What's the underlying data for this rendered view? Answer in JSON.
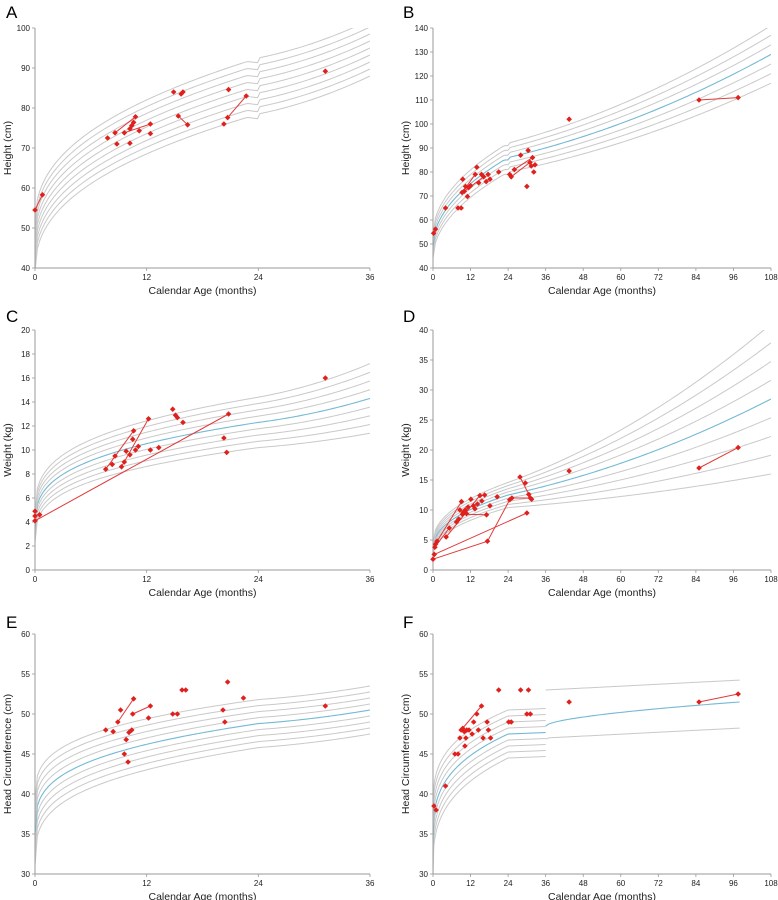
{
  "chart_data": [
    {
      "panel": "A",
      "type": "scatter",
      "xlabel": "Calendar Age (months)",
      "ylabel": "Height (cm)",
      "xlim": [
        0,
        36
      ],
      "ylim": [
        40,
        100
      ],
      "xticks": [
        0,
        12,
        24,
        36
      ],
      "yticks": [
        40,
        50,
        60,
        70,
        80,
        90,
        100
      ],
      "median_highlight": false,
      "reference": {
        "start": 45,
        "start_spread": 12,
        "at24": 85.5,
        "at24_spread": 14,
        "end": 95,
        "end_spread": 14,
        "k": 0.42,
        "lines": 9,
        "notch": 24,
        "notch_depth": 1.2
      },
      "points": [
        [
          0,
          54.5
        ],
        [
          0.8,
          58.3
        ],
        [
          7.8,
          72.5
        ],
        [
          8.6,
          73.8
        ],
        [
          8.8,
          71
        ],
        [
          9.6,
          73.8
        ],
        [
          10.2,
          71.2
        ],
        [
          10.2,
          74.8
        ],
        [
          10.4,
          75.6
        ],
        [
          10.6,
          76.4
        ],
        [
          10.8,
          77.8
        ],
        [
          11.2,
          74.3
        ],
        [
          12.4,
          73.6
        ],
        [
          12.4,
          76
        ],
        [
          14.9,
          84
        ],
        [
          15.4,
          78
        ],
        [
          15.7,
          83.5
        ],
        [
          15.9,
          84
        ],
        [
          16.4,
          75.8
        ],
        [
          20.3,
          76
        ],
        [
          20.7,
          77.6
        ],
        [
          20.8,
          84.6
        ],
        [
          22.7,
          83
        ],
        [
          31.2,
          89.2
        ]
      ],
      "connections": [
        [
          [
            0,
            54.5
          ],
          [
            0.8,
            58.3
          ]
        ],
        [
          [
            8.6,
            73.8
          ],
          [
            10.8,
            77.8
          ]
        ],
        [
          [
            9.6,
            73.8
          ],
          [
            12.4,
            76
          ]
        ],
        [
          [
            15.4,
            78
          ],
          [
            16.4,
            75.8
          ]
        ],
        [
          [
            20.7,
            77.6
          ],
          [
            22.7,
            83
          ]
        ]
      ]
    },
    {
      "panel": "B",
      "type": "scatter",
      "xlabel": "Calendar Age (months)",
      "ylabel": "Height (cm)",
      "xlim": [
        0,
        108
      ],
      "ylim": [
        40,
        140
      ],
      "xticks": [
        0,
        12,
        24,
        36,
        48,
        60,
        72,
        84,
        96,
        108
      ],
      "yticks": [
        40,
        50,
        60,
        70,
        80,
        90,
        100,
        110,
        120,
        130,
        140
      ],
      "median_highlight": true,
      "reference": {
        "start": 49,
        "start_spread": 10,
        "at24": 86,
        "at24_spread": 12,
        "end": 129,
        "end_spread": 24,
        "k": 0.5,
        "lines": 7,
        "notch": 24,
        "notch_depth": 1
      },
      "points": [
        [
          0.2,
          54.5
        ],
        [
          0.8,
          56.2
        ],
        [
          4,
          65
        ],
        [
          8,
          65
        ],
        [
          9,
          65
        ],
        [
          9.3,
          71.5
        ],
        [
          9.5,
          77
        ],
        [
          10,
          72
        ],
        [
          10.4,
          74
        ],
        [
          11,
          69.8
        ],
        [
          11.4,
          73.5
        ],
        [
          12,
          74.3
        ],
        [
          13.5,
          79
        ],
        [
          14,
          82
        ],
        [
          14.6,
          75.5
        ],
        [
          15.5,
          79
        ],
        [
          16.2,
          78
        ],
        [
          17,
          76
        ],
        [
          17.6,
          79
        ],
        [
          18.2,
          77
        ],
        [
          21,
          80
        ],
        [
          24.5,
          79
        ],
        [
          25,
          78
        ],
        [
          26,
          81
        ],
        [
          28,
          87
        ],
        [
          30,
          74
        ],
        [
          30.4,
          89
        ],
        [
          31,
          84
        ],
        [
          31.4,
          82.5
        ],
        [
          31.8,
          86
        ],
        [
          32.2,
          80
        ],
        [
          32.6,
          83
        ],
        [
          43.5,
          102
        ],
        [
          85,
          110
        ],
        [
          97.5,
          111
        ]
      ],
      "connections": [
        [
          [
            0.2,
            54.5
          ],
          [
            0.8,
            56.2
          ]
        ],
        [
          [
            9.3,
            71.5
          ],
          [
            13.5,
            79
          ]
        ],
        [
          [
            10,
            72
          ],
          [
            16.2,
            78
          ]
        ],
        [
          [
            25,
            78
          ],
          [
            31,
            84
          ]
        ],
        [
          [
            26,
            81
          ],
          [
            31.8,
            86
          ]
        ],
        [
          [
            85,
            110
          ],
          [
            97.5,
            111
          ]
        ]
      ]
    },
    {
      "panel": "C",
      "type": "scatter",
      "xlabel": "Calendar Age (months)",
      "ylabel": "Weight (kg)",
      "xlim": [
        0,
        36
      ],
      "ylim": [
        0,
        20
      ],
      "xticks": [
        0,
        12,
        24,
        36
      ],
      "yticks": [
        0,
        2,
        4,
        6,
        8,
        10,
        12,
        14,
        16,
        18,
        20
      ],
      "median_highlight": true,
      "reference": {
        "start": 3.4,
        "start_spread": 2.2,
        "at24": 12.3,
        "at24_spread": 4.2,
        "end": 14.3,
        "end_spread": 5.8,
        "k": 0.32,
        "lines": 9
      },
      "points": [
        [
          0,
          4.1
        ],
        [
          0,
          4.5
        ],
        [
          0,
          4.9
        ],
        [
          0.5,
          4.6
        ],
        [
          7.6,
          8.4
        ],
        [
          8.3,
          8.8
        ],
        [
          8.6,
          9.5
        ],
        [
          9.3,
          8.6
        ],
        [
          9.6,
          9
        ],
        [
          9.8,
          9.9
        ],
        [
          10.2,
          9.6
        ],
        [
          10.5,
          10.9
        ],
        [
          10.6,
          11.6
        ],
        [
          10.8,
          10
        ],
        [
          11.1,
          10.3
        ],
        [
          12.2,
          12.6
        ],
        [
          12.4,
          10
        ],
        [
          13.3,
          10.2
        ],
        [
          14.8,
          13.4
        ],
        [
          15.1,
          12.9
        ],
        [
          15.3,
          12.7
        ],
        [
          15.9,
          12.3
        ],
        [
          20.3,
          11
        ],
        [
          20.6,
          9.8
        ],
        [
          20.8,
          13
        ],
        [
          31.2,
          16
        ]
      ],
      "connections": [
        [
          [
            0,
            4.1
          ],
          [
            20.8,
            13
          ]
        ],
        [
          [
            7.6,
            8.4
          ],
          [
            10.6,
            11.6
          ]
        ],
        [
          [
            9.3,
            8.6
          ],
          [
            12.2,
            12.6
          ]
        ]
      ]
    },
    {
      "panel": "D",
      "type": "scatter",
      "xlabel": "Calendar Age (months)",
      "ylabel": "Weight (kg)",
      "xlim": [
        0,
        108
      ],
      "ylim": [
        0,
        40
      ],
      "xticks": [
        0,
        12,
        24,
        36,
        48,
        60,
        72,
        84,
        96,
        108
      ],
      "yticks": [
        0,
        5,
        10,
        15,
        20,
        25,
        30,
        35,
        40
      ],
      "median_highlight": true,
      "reference": {
        "start": 3.5,
        "start_spread": 2,
        "at24": 12.5,
        "at24_spread": 4.2,
        "end": 28.5,
        "end_spread": 25,
        "k": 0.45,
        "lines": 9
      },
      "points": [
        [
          0,
          1.8
        ],
        [
          0.4,
          2.6
        ],
        [
          0.6,
          3.8
        ],
        [
          0.8,
          4.3
        ],
        [
          1.3,
          4.8
        ],
        [
          4.2,
          5.5
        ],
        [
          5.2,
          7
        ],
        [
          7.5,
          8
        ],
        [
          8.2,
          8.5
        ],
        [
          8.6,
          10
        ],
        [
          9.1,
          11.4
        ],
        [
          9.4,
          9.3
        ],
        [
          9.7,
          9.6
        ],
        [
          10.3,
          10
        ],
        [
          10.7,
          9.4
        ],
        [
          11.2,
          10.5
        ],
        [
          12.1,
          11.8
        ],
        [
          12.9,
          10.7
        ],
        [
          13.4,
          10.2
        ],
        [
          14.2,
          11
        ],
        [
          15,
          12.4
        ],
        [
          15.6,
          11.5
        ],
        [
          16.5,
          12.5
        ],
        [
          17.1,
          9.2
        ],
        [
          17.4,
          4.8
        ],
        [
          18.2,
          10.7
        ],
        [
          20.5,
          12.2
        ],
        [
          24.5,
          11.7
        ],
        [
          25.2,
          12
        ],
        [
          27.8,
          15.5
        ],
        [
          29.5,
          14.5
        ],
        [
          30,
          9.5
        ],
        [
          30.6,
          12.6
        ],
        [
          31.1,
          12
        ],
        [
          31.5,
          11.8
        ],
        [
          43.5,
          16.5
        ],
        [
          85,
          17
        ],
        [
          97.5,
          20.4
        ]
      ],
      "connections": [
        [
          [
            0,
            1.8
          ],
          [
            17.4,
            4.8
          ],
          [
            24.5,
            11.7
          ]
        ],
        [
          [
            0.4,
            2.6
          ],
          [
            30,
            9.5
          ]
        ],
        [
          [
            0.6,
            3.8
          ],
          [
            5.2,
            7
          ]
        ],
        [
          [
            1.3,
            4.8
          ],
          [
            9.1,
            11.4
          ]
        ],
        [
          [
            4.2,
            5.5
          ],
          [
            15,
            12.4
          ]
        ],
        [
          [
            9.4,
            9.3
          ],
          [
            17.1,
            9.2
          ]
        ],
        [
          [
            25.2,
            12
          ],
          [
            31.1,
            12
          ]
        ],
        [
          [
            27.8,
            15.5
          ],
          [
            30.6,
            12.6
          ]
        ],
        [
          [
            85,
            17
          ],
          [
            97.5,
            20.4
          ]
        ]
      ]
    },
    {
      "panel": "E",
      "type": "scatter",
      "xlabel": "Calendar Age (months)",
      "ylabel": "Head Circumference (cm)",
      "xlim": [
        0,
        36
      ],
      "ylim": [
        30,
        60
      ],
      "xticks": [
        0,
        12,
        24,
        36
      ],
      "yticks": [
        30,
        35,
        40,
        45,
        50,
        55,
        60
      ],
      "median_highlight": true,
      "reference": {
        "start": 35,
        "start_spread": 8,
        "at24": 48.8,
        "at24_spread": 6,
        "end": 50.5,
        "end_spread": 6,
        "k": 0.3,
        "lines": 9
      },
      "points": [
        [
          7.6,
          48
        ],
        [
          8.4,
          47.8
        ],
        [
          8.9,
          49
        ],
        [
          9.2,
          50.5
        ],
        [
          9.6,
          45
        ],
        [
          9.8,
          46.8
        ],
        [
          10,
          44
        ],
        [
          10.1,
          47.7
        ],
        [
          10.4,
          48
        ],
        [
          10.5,
          50
        ],
        [
          10.6,
          51.9
        ],
        [
          12.2,
          49.5
        ],
        [
          12.4,
          51
        ],
        [
          14.8,
          50
        ],
        [
          15.3,
          50
        ],
        [
          15.8,
          53
        ],
        [
          16.2,
          53
        ],
        [
          20.2,
          50.5
        ],
        [
          20.4,
          49
        ],
        [
          20.7,
          54
        ],
        [
          22.4,
          52
        ],
        [
          31.2,
          51
        ]
      ],
      "connections": [
        [
          [
            8.9,
            49
          ],
          [
            10.6,
            51.9
          ]
        ],
        [
          [
            10.5,
            50
          ],
          [
            12.4,
            51
          ]
        ]
      ]
    },
    {
      "panel": "F",
      "type": "scatter",
      "xlabel": "Calendar Age (months)",
      "ylabel": "Head Circumference (cm)",
      "xlim": [
        0,
        108
      ],
      "ylim": [
        30,
        60
      ],
      "xticks": [
        0,
        12,
        24,
        36,
        48,
        60,
        72,
        84,
        96,
        108
      ],
      "yticks": [
        30,
        35,
        40,
        45,
        50,
        55,
        60
      ],
      "median_highlight": true,
      "reference": {
        "start": 34,
        "start_spread": 8,
        "at24": 47.5,
        "at24_spread": 6,
        "end": 49.5,
        "end_spread": 6,
        "k": 0.32,
        "lines": 9,
        "cutoff": 36
      },
      "points": [
        [
          0.3,
          38.5
        ],
        [
          1,
          38
        ],
        [
          4,
          41
        ],
        [
          7,
          45
        ],
        [
          8,
          45
        ],
        [
          8.6,
          47
        ],
        [
          9,
          48
        ],
        [
          9.5,
          48.2
        ],
        [
          10,
          47.8
        ],
        [
          10.2,
          46
        ],
        [
          10.5,
          47
        ],
        [
          10.8,
          48
        ],
        [
          11.5,
          48
        ],
        [
          12.5,
          47.5
        ],
        [
          13,
          49
        ],
        [
          14,
          50
        ],
        [
          14.5,
          48
        ],
        [
          15.5,
          51
        ],
        [
          16,
          47
        ],
        [
          17.3,
          49
        ],
        [
          17.7,
          48
        ],
        [
          18.4,
          47
        ],
        [
          21,
          53
        ],
        [
          24.2,
          49
        ],
        [
          25,
          49
        ],
        [
          28,
          53
        ],
        [
          30,
          50
        ],
        [
          30.5,
          53
        ],
        [
          31.1,
          50
        ],
        [
          43.5,
          51.5
        ],
        [
          85,
          51.5
        ],
        [
          97.5,
          52.5
        ]
      ],
      "connections": [
        [
          [
            9,
            48
          ],
          [
            15.5,
            51
          ]
        ],
        [
          [
            24.2,
            49
          ],
          [
            25,
            49
          ]
        ],
        [
          [
            30,
            50
          ],
          [
            31.1,
            50
          ]
        ],
        [
          [
            85,
            51.5
          ],
          [
            97.5,
            52.5
          ]
        ]
      ]
    }
  ]
}
